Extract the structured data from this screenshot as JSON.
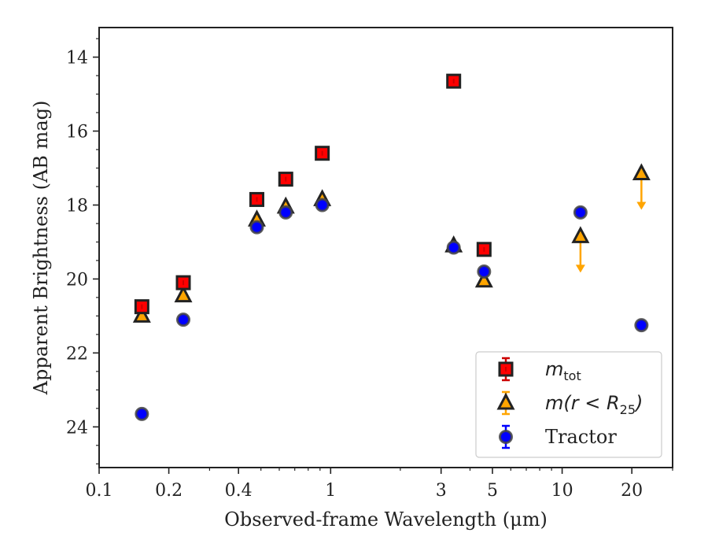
{
  "chart_data": {
    "type": "scatter",
    "xlabel": "Observed-frame Wavelength (μm)",
    "ylabel": "Apparent Brightness (AB mag)",
    "xscale": "log",
    "xlim": [
      0.1,
      30
    ],
    "ylim": [
      25.1,
      13.2
    ],
    "y_inverted": true,
    "x_ticks": [
      {
        "value": 0.1,
        "label": "0.1"
      },
      {
        "value": 0.2,
        "label": "0.2"
      },
      {
        "value": 0.4,
        "label": "0.4"
      },
      {
        "value": 1,
        "label": "1"
      },
      {
        "value": 3,
        "label": "3"
      },
      {
        "value": 5,
        "label": "5"
      },
      {
        "value": 10,
        "label": "10"
      },
      {
        "value": 20,
        "label": "20"
      }
    ],
    "y_ticks": [
      {
        "value": 14,
        "label": "14"
      },
      {
        "value": 16,
        "label": "16"
      },
      {
        "value": 18,
        "label": "18"
      },
      {
        "value": 20,
        "label": "20"
      },
      {
        "value": 22,
        "label": "22"
      },
      {
        "value": 24,
        "label": "24"
      }
    ],
    "legend_position": "lower-right",
    "grid": false,
    "series": [
      {
        "name": "m_tot",
        "legend_main": "m",
        "legend_sub": "tot",
        "marker": "square",
        "fill": "#ff0000",
        "errcolor": "#cc0000",
        "points": [
          {
            "x": 0.153,
            "y": 20.75
          },
          {
            "x": 0.231,
            "y": 20.1
          },
          {
            "x": 0.48,
            "y": 17.85
          },
          {
            "x": 0.64,
            "y": 17.3
          },
          {
            "x": 0.92,
            "y": 16.6
          },
          {
            "x": 3.4,
            "y": 14.65
          },
          {
            "x": 4.6,
            "y": 19.2
          }
        ]
      },
      {
        "name": "m(r < R25)",
        "legend_main": "m(r < R",
        "legend_sub": "25",
        "legend_close": ")",
        "marker": "triangle",
        "fill": "#ffa500",
        "errcolor": "#ffa500",
        "points": [
          {
            "x": 0.153,
            "y": 21.0
          },
          {
            "x": 0.231,
            "y": 20.45
          },
          {
            "x": 0.48,
            "y": 18.4
          },
          {
            "x": 0.64,
            "y": 18.05
          },
          {
            "x": 0.92,
            "y": 17.85
          },
          {
            "x": 3.4,
            "y": 19.1
          },
          {
            "x": 4.6,
            "y": 20.05
          },
          {
            "x": 12.0,
            "y": 18.85,
            "upper_limit": true
          },
          {
            "x": 22.0,
            "y": 17.15,
            "upper_limit": true
          }
        ]
      },
      {
        "name": "Tractor",
        "legend_main": "Tractor",
        "marker": "circle",
        "fill": "#0000ff",
        "errcolor": "#0000ff",
        "points": [
          {
            "x": 0.153,
            "y": 23.65
          },
          {
            "x": 0.231,
            "y": 21.1
          },
          {
            "x": 0.48,
            "y": 18.6
          },
          {
            "x": 0.64,
            "y": 18.2
          },
          {
            "x": 0.92,
            "y": 18.0
          },
          {
            "x": 3.4,
            "y": 19.15
          },
          {
            "x": 4.6,
            "y": 19.8
          },
          {
            "x": 12.0,
            "y": 18.2
          },
          {
            "x": 22.0,
            "y": 21.25
          }
        ]
      }
    ]
  }
}
